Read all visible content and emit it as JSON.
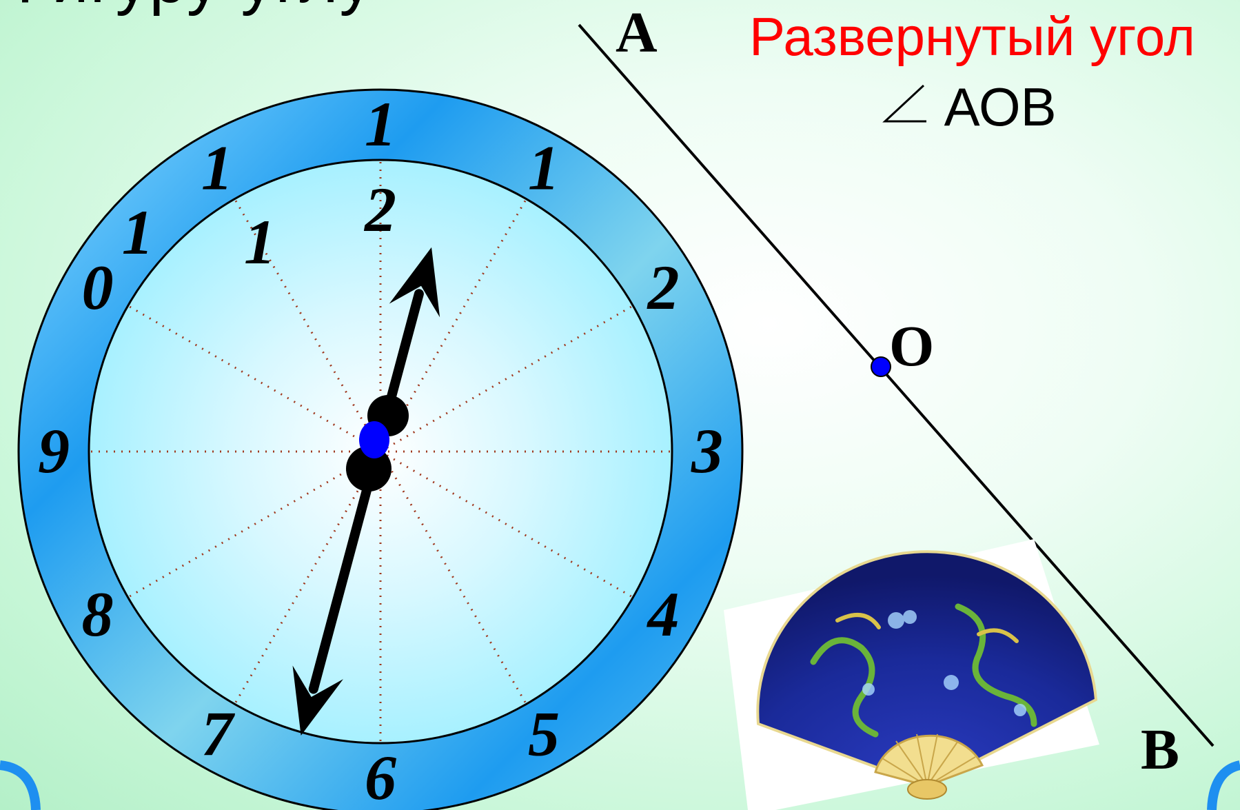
{
  "slide": {
    "heading_partial": "Фигуру углу",
    "title": "Развернутый угол",
    "angle_name": "АОВ"
  },
  "line": {
    "point_a": "A",
    "point_o": "O",
    "point_b": "B"
  },
  "clock": {
    "numerals": [
      {
        "hour": 12,
        "outer": "1",
        "inner": "2"
      },
      {
        "hour": 1,
        "outer": "1",
        "inner": ""
      },
      {
        "hour": 2,
        "outer": "2",
        "inner": ""
      },
      {
        "hour": 3,
        "outer": "3",
        "inner": ""
      },
      {
        "hour": 4,
        "outer": "4",
        "inner": ""
      },
      {
        "hour": 5,
        "outer": "5",
        "inner": ""
      },
      {
        "hour": 6,
        "outer": "6",
        "inner": ""
      },
      {
        "hour": 7,
        "outer": "7",
        "inner": ""
      },
      {
        "hour": 8,
        "outer": "8",
        "inner": ""
      },
      {
        "hour": 9,
        "outer": "9",
        "inner": ""
      },
      {
        "hour": 10,
        "outer": "0",
        "inner": ""
      },
      {
        "hour": 10.4,
        "outer": "1",
        "inner": ""
      },
      {
        "hour": 11,
        "outer": "1",
        "inner": "1"
      }
    ],
    "hand_hour": 12.5,
    "hand_minute": 6.5
  },
  "colors": {
    "title": "#ff0000",
    "ring": "#1e9cf0",
    "face": "#b8f2ff",
    "center_dot": "#0000ff",
    "fan": "#1a2a9a"
  },
  "icons": {
    "angle": "angle-symbol-icon",
    "fan": "chinese-fan-icon"
  }
}
